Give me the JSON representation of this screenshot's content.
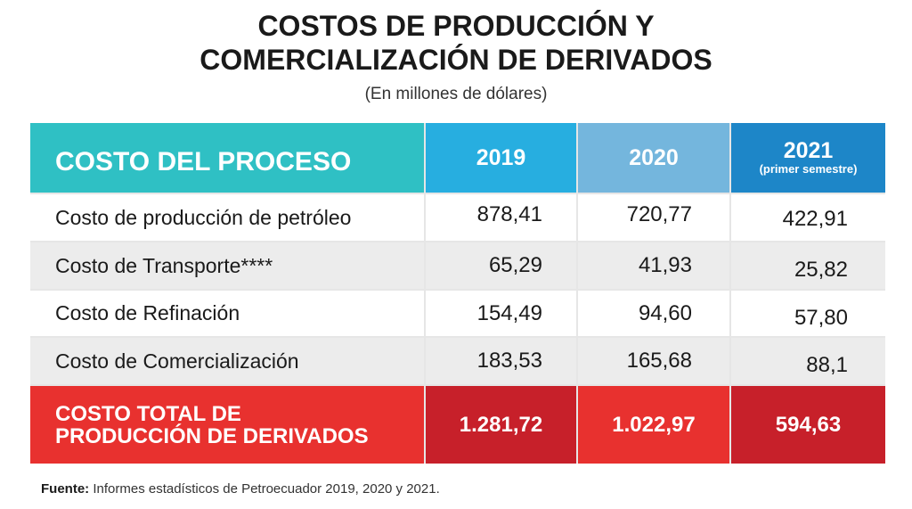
{
  "title": {
    "line1": "COSTOS DE PRODUCCIÓN Y",
    "line2": "COMERCIALIZACIÓN DE DERIVADOS"
  },
  "subtitle": "(En millones de dólares)",
  "table": {
    "header": {
      "label": "COSTO DEL PROCESO",
      "years": [
        "2019",
        "2020",
        "2021"
      ],
      "year3_note": "(primer semestre)"
    },
    "rows": [
      {
        "label": "Costo de producción de petróleo",
        "values": [
          "878,41",
          "720,77",
          "422,91"
        ]
      },
      {
        "label": "Costo de Transporte****",
        "values": [
          "65,29",
          "41,93",
          "25,82"
        ]
      },
      {
        "label": "Costo de Refinación",
        "values": [
          "154,49",
          "94,60",
          "57,80"
        ]
      },
      {
        "label": "Costo de Comercialización",
        "values": [
          "183,53",
          "165,68",
          "88,1"
        ]
      }
    ],
    "total": {
      "label_line1": "COSTO TOTAL DE",
      "label_line2": "PRODUCCIÓN DE DERIVADOS",
      "values": [
        "1.281,72",
        "1.022,97",
        "594,63"
      ]
    }
  },
  "footer": {
    "source_label": "Fuente:",
    "source_text": " Informes estadísticos de Petroecuador 2019, 2020 y 2021."
  },
  "colors": {
    "header_teal": "#2fc0c4",
    "header_2019": "#27aee0",
    "header_2020": "#74b6dd",
    "header_2021": "#1d86c8",
    "total_red": "#e8312f",
    "total_dark_red": "#c7202a"
  }
}
